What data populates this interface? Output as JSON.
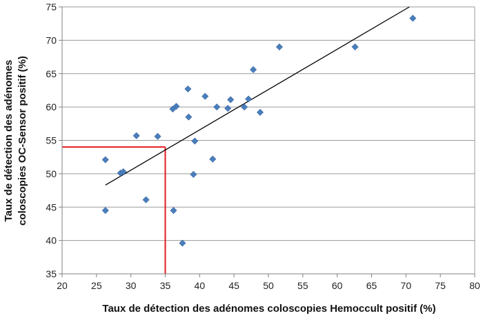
{
  "chart_data": {
    "type": "scatter",
    "title": "",
    "xlabel": "Taux de détection des adénomes coloscopies Hemoccult positif  (%)",
    "ylabel_line1": "Taux de détection des adénomes",
    "ylabel_line2": "coloscopies OC-Sensor positif  (%)",
    "xlim": [
      20,
      80
    ],
    "ylim": [
      35,
      75
    ],
    "xticks": [
      20,
      25,
      30,
      35,
      40,
      45,
      50,
      55,
      60,
      65,
      70,
      75,
      80
    ],
    "yticks": [
      35,
      40,
      45,
      50,
      55,
      60,
      65,
      70,
      75
    ],
    "grid": "horizontal",
    "legend": "none",
    "marker_color": "#4a7ebb",
    "marker_shape": "diamond",
    "series": [
      {
        "points": [
          [
            26.3,
            52.1
          ],
          [
            26.3,
            44.5
          ],
          [
            28.5,
            50.1
          ],
          [
            28.9,
            50.3
          ],
          [
            30.8,
            55.7
          ],
          [
            32.2,
            46.1
          ],
          [
            33.9,
            55.6
          ],
          [
            36.1,
            59.7
          ],
          [
            36.2,
            44.5
          ],
          [
            36.6,
            60.1
          ],
          [
            37.5,
            39.6
          ],
          [
            38.3,
            62.7
          ],
          [
            38.4,
            58.5
          ],
          [
            39.1,
            49.9
          ],
          [
            39.3,
            54.9
          ],
          [
            40.8,
            61.6
          ],
          [
            41.9,
            52.2
          ],
          [
            42.5,
            60.0
          ],
          [
            44.1,
            59.8
          ],
          [
            44.5,
            61.1
          ],
          [
            46.5,
            60.0
          ],
          [
            47.1,
            61.2
          ],
          [
            47.8,
            65.6
          ],
          [
            48.8,
            59.2
          ],
          [
            51.6,
            69.0
          ],
          [
            62.6,
            69.0
          ],
          [
            71.0,
            73.3
          ]
        ]
      }
    ],
    "trendline": {
      "x": [
        26.3,
        70.5
      ],
      "y": [
        48.3,
        75.0
      ],
      "color": "#000000"
    },
    "reference_lines": {
      "x": 35,
      "y": 54,
      "color": "#e31a1c"
    }
  }
}
